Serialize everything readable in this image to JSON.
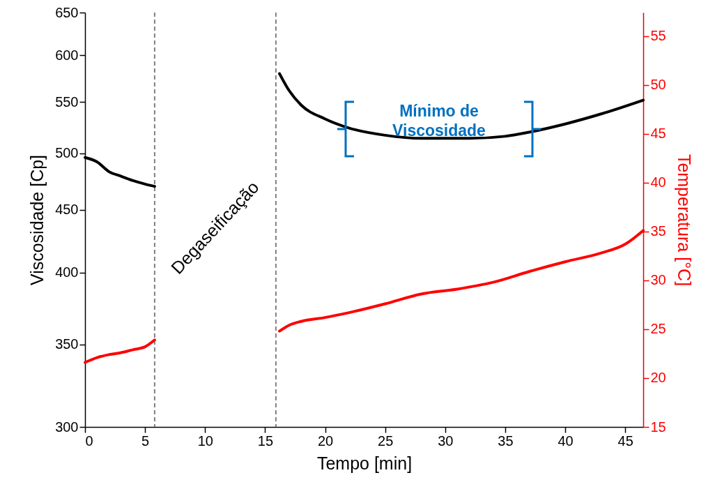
{
  "chart_data": {
    "type": "line",
    "xlabel": "Tempo [min]",
    "ylabel": "Viscosidade [Cp]",
    "y2label": "Temperatura [°C]",
    "series": [
      {
        "color": "#000000",
        "x": [
          0,
          1,
          2,
          3,
          4,
          5,
          5.8,
          11,
          16.2,
          17,
          18,
          20,
          22,
          25,
          28,
          32,
          35,
          37,
          40,
          43,
          46.5
        ],
        "values": [
          496,
          492,
          483,
          479,
          475,
          472,
          470,
          null,
          580,
          562,
          547,
          533,
          524,
          517,
          514,
          514,
          516,
          520,
          528,
          538,
          552
        ]
      },
      {
        "color": "#ff0000",
        "axis": "y2",
        "x": [
          0,
          1,
          2,
          3,
          4,
          5,
          5.8,
          11,
          16.2,
          17,
          18,
          20,
          22,
          25,
          28,
          31,
          34,
          37,
          40,
          43,
          45,
          46.5
        ],
        "values": [
          21.6,
          22.1,
          22.4,
          22.6,
          22.9,
          23.2,
          23.9,
          null,
          24.8,
          25.4,
          25.8,
          26.2,
          26.7,
          27.6,
          28.6,
          29.1,
          29.8,
          30.9,
          31.9,
          32.8,
          33.7,
          35.1
        ]
      }
    ],
    "xlim": [
      0,
      46.5
    ],
    "xticks": [
      0,
      5,
      10,
      15,
      20,
      25,
      30,
      35,
      40,
      45
    ],
    "ylim": [
      300,
      650
    ],
    "yticks": [
      300,
      350,
      400,
      450,
      500,
      550,
      600,
      650
    ],
    "log": "y",
    "y2lim": [
      15,
      57.4
    ],
    "y2ticks": [
      15,
      20,
      25,
      30,
      35,
      40,
      45,
      50,
      55
    ],
    "ref_lines": [
      {
        "axis": "x",
        "value": 5.8,
        "color": "#808080",
        "line_style": "dashed"
      },
      {
        "axis": "x",
        "value": 15.9,
        "label": "Degaseificação",
        "color": "#808080",
        "line_style": "dashed"
      }
    ],
    "annotations": [
      "Mínimo de Viscosidade"
    ],
    "grid": false,
    "line_style": "solid",
    "marker": "none"
  }
}
